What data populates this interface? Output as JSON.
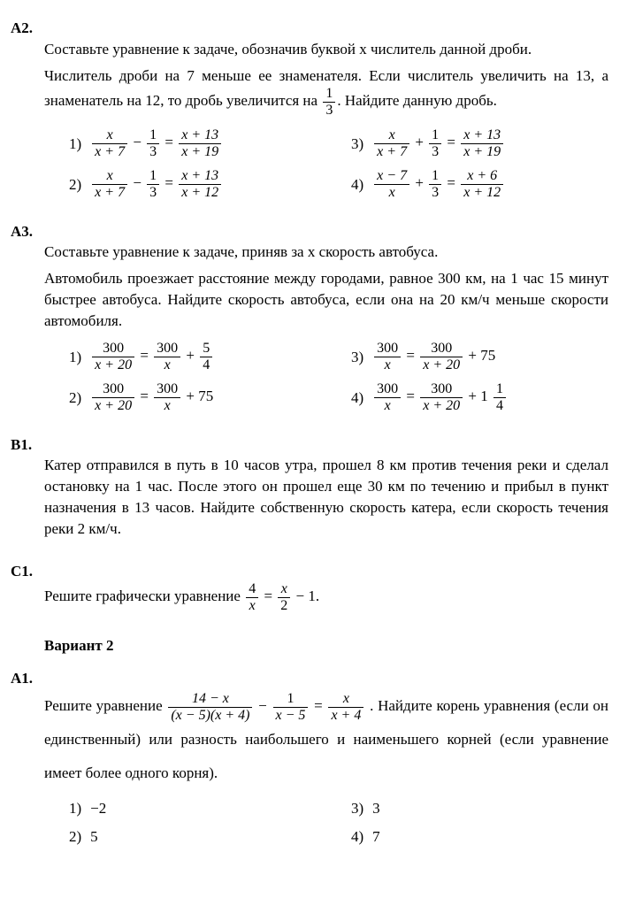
{
  "A2": {
    "label": "А2.",
    "text1": "Составьте уравнение к задаче, обозначив буквой x числитель данной дроби.",
    "text2_a": "Числитель дроби на 7 меньше ее знаменателя. Если числитель увеличить на 13, а знаменатель на 12, то дробь увеличится на ",
    "text2_b": ". Найдите данную дробь.",
    "frac_inc_num": "1",
    "frac_inc_den": "3",
    "opt1": {
      "n": "1)",
      "l_num": "x",
      "l_den": "x + 7",
      "op": "−",
      "m_num": "1",
      "m_den": "3",
      "r_num": "x + 13",
      "r_den": "x + 19"
    },
    "opt2": {
      "n": "2)",
      "l_num": "x",
      "l_den": "x + 7",
      "op": "−",
      "m_num": "1",
      "m_den": "3",
      "r_num": "x + 13",
      "r_den": "x + 12"
    },
    "opt3": {
      "n": "3)",
      "l_num": "x",
      "l_den": "x + 7",
      "op": "+",
      "m_num": "1",
      "m_den": "3",
      "r_num": "x + 13",
      "r_den": "x + 19"
    },
    "opt4": {
      "n": "4)",
      "l_num": "x − 7",
      "l_den": "x",
      "op": "+",
      "m_num": "1",
      "m_den": "3",
      "r_num": "x + 6",
      "r_den": "x + 12"
    }
  },
  "A3": {
    "label": "А3.",
    "text1": "Составьте уравнение к задаче, приняв за x скорость автобуса.",
    "text2": "Автомобиль проезжает расстояние между городами, равное 300 км, на 1 час 15 минут быстрее автобуса. Найдите скорость автобуса, если она на 20 км/ч меньше скорости автомобиля.",
    "opt1": {
      "n": "1)",
      "l_num": "300",
      "l_den": "x + 20",
      "r_num": "300",
      "r_den": "x",
      "tail": "+",
      "t_num": "5",
      "t_den": "4"
    },
    "opt2": {
      "n": "2)",
      "l_num": "300",
      "l_den": "x + 20",
      "r_num": "300",
      "r_den": "x",
      "tail": "+ 75"
    },
    "opt3": {
      "n": "3)",
      "l_num": "300",
      "l_den": "x",
      "r_num": "300",
      "r_den": "x + 20",
      "tail": "+ 75"
    },
    "opt4": {
      "n": "4)",
      "l_num": "300",
      "l_den": "x",
      "r_num": "300",
      "r_den": "x + 20",
      "tail": "+ 1",
      "t_num": "1",
      "t_den": "4"
    }
  },
  "B1": {
    "label": "В1.",
    "text": "Катер отправился в путь в 10 часов утра, прошел 8 км против течения реки и сделал остановку на 1 час. После этого он прошел еще 30 км по течению и прибыл в пункт назначения в 13 часов. Найдите собственную скорость катера, если скорость течения реки 2 км/ч."
  },
  "C1": {
    "label": "С1.",
    "text_a": "Решите графически уравнение ",
    "l_num": "4",
    "l_den": "x",
    "r_num": "x",
    "r_den": "2",
    "tail": "− 1."
  },
  "variant": "Вариант 2",
  "A1": {
    "label": "А1.",
    "text_a": "Решите уравнение ",
    "l_num": "14 − x",
    "l_den": "(x − 5)(x + 4)",
    "m_num": "1",
    "m_den": "x − 5",
    "r_num": "x",
    "r_den": "x + 4",
    "text_b": ". Найдите ",
    "text_c": "корень уравнения (если он единственный) или разность наибольшего и наименьшего корней (если уравнение имеет более одного корня).",
    "opt1": {
      "n": "1)",
      "v": "−2"
    },
    "opt2": {
      "n": "2)",
      "v": "5"
    },
    "opt3": {
      "n": "3)",
      "v": "3"
    },
    "opt4": {
      "n": "4)",
      "v": "7"
    }
  }
}
